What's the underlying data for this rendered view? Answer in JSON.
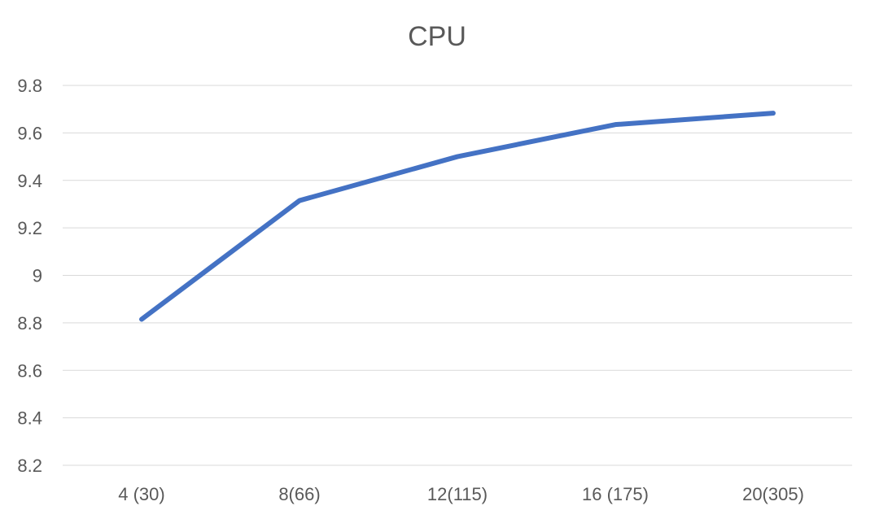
{
  "chart_data": {
    "type": "line",
    "title": "CPU",
    "xlabel": "",
    "ylabel": "",
    "categories": [
      "4 (30)",
      "8(66)",
      "12(115)",
      "16 (175)",
      "20(305)"
    ],
    "series": [
      {
        "values": [
          8.815,
          9.315,
          9.5,
          9.635,
          9.683
        ],
        "color": "#4472C4"
      }
    ],
    "ylim": [
      8.2,
      9.8
    ],
    "yticks": [
      8.2,
      8.4,
      8.6,
      8.8,
      9,
      9.2,
      9.4,
      9.6,
      9.8
    ],
    "ytick_labels": [
      "8.2",
      "8.4",
      "8.6",
      "8.8",
      "9",
      "9.2",
      "9.4",
      "9.6",
      "9.8"
    ],
    "grid": true,
    "legend": "none",
    "colors": {
      "gridline": "#d9d9d9",
      "text": "#595959",
      "line": "#4472C4"
    }
  }
}
